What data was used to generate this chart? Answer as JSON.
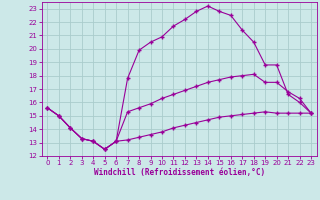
{
  "xlabel": "Windchill (Refroidissement éolien,°C)",
  "bg_color": "#cce8e8",
  "grid_color": "#aacccc",
  "line_color": "#990099",
  "xlim": [
    -0.5,
    23.5
  ],
  "ylim": [
    12,
    23.5
  ],
  "xticks": [
    0,
    1,
    2,
    3,
    4,
    5,
    6,
    7,
    8,
    9,
    10,
    11,
    12,
    13,
    14,
    15,
    16,
    17,
    18,
    19,
    20,
    21,
    22,
    23
  ],
  "yticks": [
    12,
    13,
    14,
    15,
    16,
    17,
    18,
    19,
    20,
    21,
    22,
    23
  ],
  "line1_x": [
    0,
    1,
    2,
    3,
    4,
    5,
    6,
    7,
    8,
    9,
    10,
    11,
    12,
    13,
    14,
    15,
    16,
    17,
    18,
    19,
    20,
    21,
    22,
    23
  ],
  "line1_y": [
    15.6,
    15.0,
    14.1,
    13.3,
    13.1,
    12.5,
    13.1,
    17.8,
    19.9,
    20.5,
    20.9,
    21.7,
    22.2,
    22.8,
    23.2,
    22.8,
    22.5,
    21.4,
    20.5,
    18.8,
    18.8,
    16.6,
    16.0,
    15.2
  ],
  "line2_x": [
    0,
    1,
    2,
    3,
    4,
    5,
    6,
    7,
    8,
    9,
    10,
    11,
    12,
    13,
    14,
    15,
    16,
    17,
    18,
    19,
    20,
    21,
    22,
    23
  ],
  "line2_y": [
    15.6,
    15.0,
    14.1,
    13.3,
    13.1,
    12.5,
    13.1,
    15.3,
    15.6,
    15.9,
    16.3,
    16.6,
    16.9,
    17.2,
    17.5,
    17.7,
    17.9,
    18.0,
    18.1,
    17.5,
    17.5,
    16.8,
    16.3,
    15.2
  ],
  "line3_x": [
    0,
    1,
    2,
    3,
    4,
    5,
    6,
    7,
    8,
    9,
    10,
    11,
    12,
    13,
    14,
    15,
    16,
    17,
    18,
    19,
    20,
    21,
    22,
    23
  ],
  "line3_y": [
    15.6,
    15.0,
    14.1,
    13.3,
    13.1,
    12.5,
    13.1,
    13.2,
    13.4,
    13.6,
    13.8,
    14.1,
    14.3,
    14.5,
    14.7,
    14.9,
    15.0,
    15.1,
    15.2,
    15.3,
    15.2,
    15.2,
    15.2,
    15.2
  ],
  "marker": "+",
  "markersize": 3,
  "linewidth": 0.8,
  "tick_fontsize": 5,
  "xlabel_fontsize": 5.5
}
